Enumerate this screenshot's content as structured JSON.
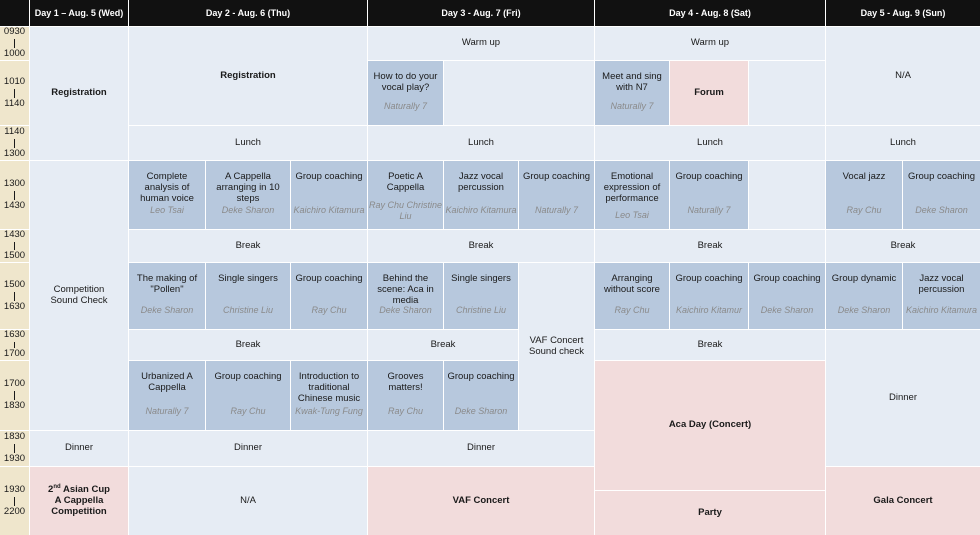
{
  "days": [
    "Day 1 – Aug. 5 (Wed)",
    "Day 2 - Aug. 6 (Thu)",
    "Day 3 - Aug. 7 (Fri)",
    "Day 4 - Aug. 8 (Sat)",
    "Day 5 - Aug. 9 (Sun)"
  ],
  "times": [
    {
      "start": "0930",
      "end": "1000"
    },
    {
      "start": "1010",
      "end": "1140"
    },
    {
      "start": "1140",
      "end": "1300"
    },
    {
      "start": "1300",
      "end": "1430"
    },
    {
      "start": "1430",
      "end": "1500"
    },
    {
      "start": "1500",
      "end": "1630"
    },
    {
      "start": "1630",
      "end": "1700"
    },
    {
      "start": "1700",
      "end": "1830"
    },
    {
      "start": "1830",
      "end": "1930"
    },
    {
      "start": "1930",
      "end": "2200"
    }
  ],
  "day1": {
    "registration": "Registration",
    "competition_l1": "Competition",
    "competition_l2": "Sound Check",
    "dinner": "Dinner",
    "cup_pre": "2",
    "cup_sup": "nd",
    "cup_post": " Asian Cup",
    "cup_l2": "A Cappella",
    "cup_l3": "Competition"
  },
  "day2": {
    "registration": "Registration",
    "lunch": "Lunch",
    "s1": [
      {
        "title": "Complete analysis of human voice",
        "speaker": "Leo Tsai"
      },
      {
        "title": "A Cappella arranging in 10 steps",
        "speaker": "Deke Sharon"
      },
      {
        "title": "Group coaching",
        "speaker": "Kaichiro Kitamura"
      }
    ],
    "break1": "Break",
    "s2": [
      {
        "title": "The making of \"Pollen\"",
        "speaker": "Deke Sharon"
      },
      {
        "title": "Single singers",
        "speaker": "Christine Liu"
      },
      {
        "title": "Group coaching",
        "speaker": "Ray Chu"
      }
    ],
    "break2": "Break",
    "s3": [
      {
        "title": "Urbanized A Cappella",
        "speaker": "Naturally 7"
      },
      {
        "title": "Group coaching",
        "speaker": "Ray Chu"
      },
      {
        "title": "Introduction to traditional Chinese music",
        "speaker": "Kwak-Tung Fung"
      }
    ],
    "dinner": "Dinner",
    "na": "N/A"
  },
  "day3": {
    "warmup": "Warm up",
    "vocal_play": {
      "title": "How to do your vocal play?",
      "speaker": "Naturally 7"
    },
    "lunch": "Lunch",
    "s1": [
      {
        "title": "Poetic A Cappella",
        "speaker": "Ray Chu Christine Liu"
      },
      {
        "title": "Jazz vocal percussion",
        "speaker": "Kaichiro Kitamura"
      },
      {
        "title": "Group coaching",
        "speaker": "Naturally 7"
      }
    ],
    "break1": "Break",
    "s2": [
      {
        "title": "Behind the scene: Aca in media",
        "speaker": "Deke Sharon"
      },
      {
        "title": "Single singers",
        "speaker": "Christine Liu"
      }
    ],
    "vaf_check": "VAF Concert Sound check",
    "break2": "Break",
    "s3": [
      {
        "title": "Grooves matters!",
        "speaker": "Ray Chu"
      },
      {
        "title": "Group coaching",
        "speaker": "Deke Sharon"
      }
    ],
    "dinner": "Dinner",
    "vaf_concert": "VAF Concert"
  },
  "day4": {
    "warmup": "Warm up",
    "meet": {
      "title": "Meet and sing with N7",
      "speaker": "Naturally 7"
    },
    "forum": "Forum",
    "lunch": "Lunch",
    "s1": [
      {
        "title": "Emotional expression of performance",
        "speaker": "Leo Tsai"
      },
      {
        "title": "Group coaching",
        "speaker": "Naturally 7"
      }
    ],
    "break1": "Break",
    "s2": [
      {
        "title": "Arranging without score",
        "speaker": "Ray Chu"
      },
      {
        "title": "Group coaching",
        "speaker": "Kaichiro Kitamur"
      },
      {
        "title": "Group coaching",
        "speaker": "Deke Sharon"
      }
    ],
    "break2": "Break",
    "aca_day": "Aca Day (Concert)",
    "party": "Party"
  },
  "day5": {
    "na": "N/A",
    "lunch": "Lunch",
    "s1": [
      {
        "title": "Vocal jazz",
        "speaker": "Ray Chu"
      },
      {
        "title": "Group coaching",
        "speaker": "Deke Sharon"
      }
    ],
    "break1": "Break",
    "s2": [
      {
        "title": "Group dynamic",
        "speaker": "Deke Sharon"
      },
      {
        "title": "Jazz vocal percussion",
        "speaker": "Kaichiro Kitamura"
      }
    ],
    "dinner": "Dinner",
    "gala": "Gala Concert"
  }
}
